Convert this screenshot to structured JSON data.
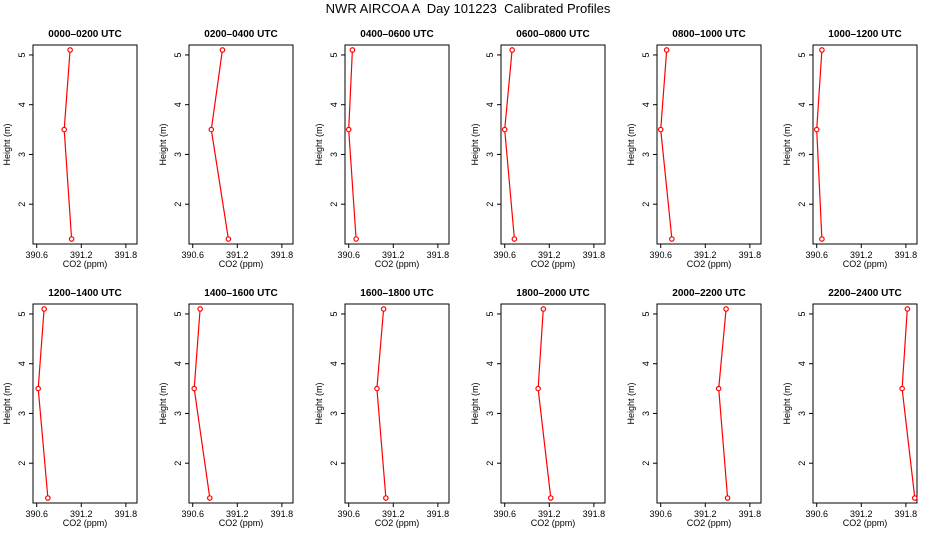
{
  "page": {
    "title": "NWR AIRCOA A  Day 101223  Calibrated Profiles"
  },
  "colors": {
    "series": "#ff0000",
    "axis": "#000000",
    "background": "#ffffff"
  },
  "chart_data": [
    {
      "type": "line",
      "title": "0000–0200 UTC",
      "xlabel": "CO2 (ppm)",
      "ylabel": "Height (m)",
      "xticks": [
        "390.6",
        "391.2",
        "391.8"
      ],
      "xlim": [
        390.55,
        391.95
      ],
      "yticks": [
        "2",
        "3",
        "4",
        "5"
      ],
      "ylim": [
        1.2,
        5.2
      ],
      "x": [
        391.05,
        390.97,
        391.07
      ],
      "y": [
        5.1,
        3.5,
        1.3
      ]
    },
    {
      "type": "line",
      "title": "0200–0400 UTC",
      "xlabel": "CO2 (ppm)",
      "ylabel": "Height (m)",
      "xticks": [
        "390.6",
        "391.2",
        "391.8"
      ],
      "xlim": [
        390.55,
        391.95
      ],
      "yticks": [
        "2",
        "3",
        "4",
        "5"
      ],
      "ylim": [
        1.2,
        5.2
      ],
      "x": [
        391.0,
        390.85,
        391.08
      ],
      "y": [
        5.1,
        3.5,
        1.3
      ]
    },
    {
      "type": "line",
      "title": "0400–0600 UTC",
      "xlabel": "CO2 (ppm)",
      "ylabel": "Height (m)",
      "xticks": [
        "390.6",
        "391.2",
        "391.8"
      ],
      "xlim": [
        390.55,
        391.95
      ],
      "yticks": [
        "2",
        "3",
        "4",
        "5"
      ],
      "ylim": [
        1.2,
        5.2
      ],
      "x": [
        390.65,
        390.6,
        390.7
      ],
      "y": [
        5.1,
        3.5,
        1.3
      ]
    },
    {
      "type": "line",
      "title": "0600–0800 UTC",
      "xlabel": "CO2 (ppm)",
      "ylabel": "Height (m)",
      "xticks": [
        "390.6",
        "391.2",
        "391.8"
      ],
      "xlim": [
        390.55,
        391.95
      ],
      "yticks": [
        "2",
        "3",
        "4",
        "5"
      ],
      "ylim": [
        1.2,
        5.2
      ],
      "x": [
        390.7,
        390.6,
        390.73
      ],
      "y": [
        5.1,
        3.5,
        1.3
      ]
    },
    {
      "type": "line",
      "title": "0800–1000 UTC",
      "xlabel": "CO2 (ppm)",
      "ylabel": "Height (m)",
      "xticks": [
        "390.6",
        "391.2",
        "391.8"
      ],
      "xlim": [
        390.55,
        391.95
      ],
      "yticks": [
        "2",
        "3",
        "4",
        "5"
      ],
      "ylim": [
        1.2,
        5.2
      ],
      "x": [
        390.68,
        390.6,
        390.75
      ],
      "y": [
        5.1,
        3.5,
        1.3
      ]
    },
    {
      "type": "line",
      "title": "1000–1200 UTC",
      "xlabel": "CO2 (ppm)",
      "ylabel": "Height (m)",
      "xticks": [
        "390.6",
        "391.2",
        "391.8"
      ],
      "xlim": [
        390.55,
        391.95
      ],
      "yticks": [
        "2",
        "3",
        "4",
        "5"
      ],
      "ylim": [
        1.2,
        5.2
      ],
      "x": [
        390.67,
        390.6,
        390.67
      ],
      "y": [
        5.1,
        3.5,
        1.3
      ]
    },
    {
      "type": "line",
      "title": "1200–1400 UTC",
      "xlabel": "CO2 (ppm)",
      "ylabel": "Height (m)",
      "xticks": [
        "390.6",
        "391.2",
        "391.8"
      ],
      "xlim": [
        390.55,
        391.95
      ],
      "yticks": [
        "2",
        "3",
        "4",
        "5"
      ],
      "ylim": [
        1.2,
        5.2
      ],
      "x": [
        390.7,
        390.62,
        390.75
      ],
      "y": [
        5.1,
        3.5,
        1.3
      ]
    },
    {
      "type": "line",
      "title": "1400–1600 UTC",
      "xlabel": "CO2 (ppm)",
      "ylabel": "Height (m)",
      "xticks": [
        "390.6",
        "391.2",
        "391.8"
      ],
      "xlim": [
        390.55,
        391.95
      ],
      "yticks": [
        "2",
        "3",
        "4",
        "5"
      ],
      "ylim": [
        1.2,
        5.2
      ],
      "x": [
        390.7,
        390.62,
        390.83
      ],
      "y": [
        5.1,
        3.5,
        1.3
      ]
    },
    {
      "type": "line",
      "title": "1600–1800 UTC",
      "xlabel": "CO2 (ppm)",
      "ylabel": "Height (m)",
      "xticks": [
        "390.6",
        "391.2",
        "391.8"
      ],
      "xlim": [
        390.55,
        391.95
      ],
      "yticks": [
        "2",
        "3",
        "4",
        "5"
      ],
      "ylim": [
        1.2,
        5.2
      ],
      "x": [
        391.07,
        390.98,
        391.1
      ],
      "y": [
        5.1,
        3.5,
        1.3
      ]
    },
    {
      "type": "line",
      "title": "1800–2000 UTC",
      "xlabel": "CO2 (ppm)",
      "ylabel": "Height (m)",
      "xticks": [
        "390.6",
        "391.2",
        "391.8"
      ],
      "xlim": [
        390.55,
        391.95
      ],
      "yticks": [
        "2",
        "3",
        "4",
        "5"
      ],
      "ylim": [
        1.2,
        5.2
      ],
      "x": [
        391.12,
        391.05,
        391.22
      ],
      "y": [
        5.1,
        3.5,
        1.3
      ]
    },
    {
      "type": "line",
      "title": "2000–2200 UTC",
      "xlabel": "CO2 (ppm)",
      "ylabel": "Height (m)",
      "xticks": [
        "390.6",
        "391.2",
        "391.8"
      ],
      "xlim": [
        390.55,
        391.95
      ],
      "yticks": [
        "2",
        "3",
        "4",
        "5"
      ],
      "ylim": [
        1.2,
        5.2
      ],
      "x": [
        391.48,
        391.38,
        391.5
      ],
      "y": [
        5.1,
        3.5,
        1.3
      ]
    },
    {
      "type": "line",
      "title": "2200–2400 UTC",
      "xlabel": "CO2 (ppm)",
      "ylabel": "Height (m)",
      "xticks": [
        "390.6",
        "391.2",
        "391.8"
      ],
      "xlim": [
        390.55,
        391.95
      ],
      "yticks": [
        "2",
        "3",
        "4",
        "5"
      ],
      "ylim": [
        1.2,
        5.2
      ],
      "x": [
        391.82,
        391.75,
        391.92
      ],
      "y": [
        5.1,
        3.5,
        1.3
      ]
    }
  ]
}
